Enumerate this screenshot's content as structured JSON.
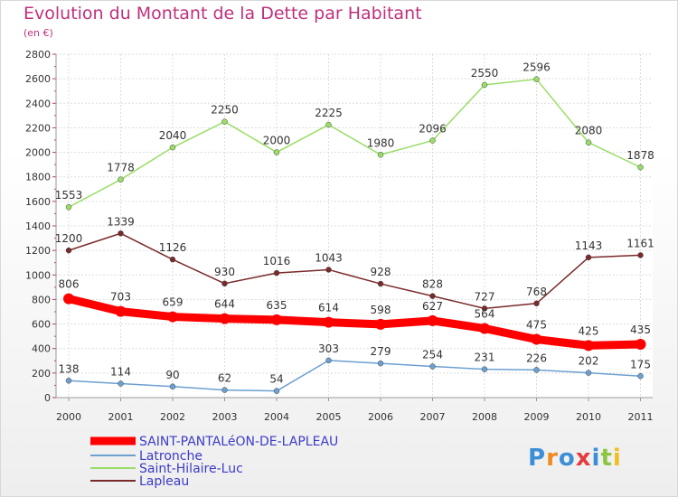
{
  "title": "Evolution du Montant de la Dette par Habitant",
  "unit": "(en €)",
  "logo_text": "Proxiti",
  "chart_data": {
    "type": "line",
    "title": "Evolution du Montant de la Dette par Habitant",
    "subtitle": "(en €)",
    "xlabel": "",
    "ylabel": "",
    "x": [
      "2000",
      "2001",
      "2002",
      "2003",
      "2004",
      "2005",
      "2006",
      "2007",
      "2008",
      "2009",
      "2010",
      "2011"
    ],
    "ylim": [
      0,
      2800
    ],
    "yticks": [
      0,
      200,
      400,
      600,
      800,
      1000,
      1200,
      1400,
      1600,
      1800,
      2000,
      2200,
      2400,
      2600,
      2800
    ],
    "grid": true,
    "legend_position": "bottom-left",
    "series": [
      {
        "name": "SAINT-PANTALéON-DE-LAPLEAU",
        "color": "#ff0000",
        "values": [
          806,
          703,
          659,
          644,
          635,
          614,
          598,
          627,
          564,
          475,
          425,
          435
        ]
      },
      {
        "name": "Latronche",
        "color": "#6ca0d0",
        "values": [
          138,
          114,
          90,
          62,
          54,
          303,
          279,
          254,
          231,
          226,
          202,
          175
        ]
      },
      {
        "name": "Saint-Hilaire-Luc",
        "color": "#99dd66",
        "values": [
          1553,
          1778,
          2040,
          2250,
          2000,
          2225,
          1980,
          2096,
          2550,
          2596,
          2080,
          1878
        ]
      },
      {
        "name": "Lapleau",
        "color": "#7a2a2a",
        "values": [
          1200,
          1339,
          1126,
          930,
          1016,
          1043,
          928,
          828,
          727,
          768,
          1143,
          1161
        ]
      }
    ]
  }
}
